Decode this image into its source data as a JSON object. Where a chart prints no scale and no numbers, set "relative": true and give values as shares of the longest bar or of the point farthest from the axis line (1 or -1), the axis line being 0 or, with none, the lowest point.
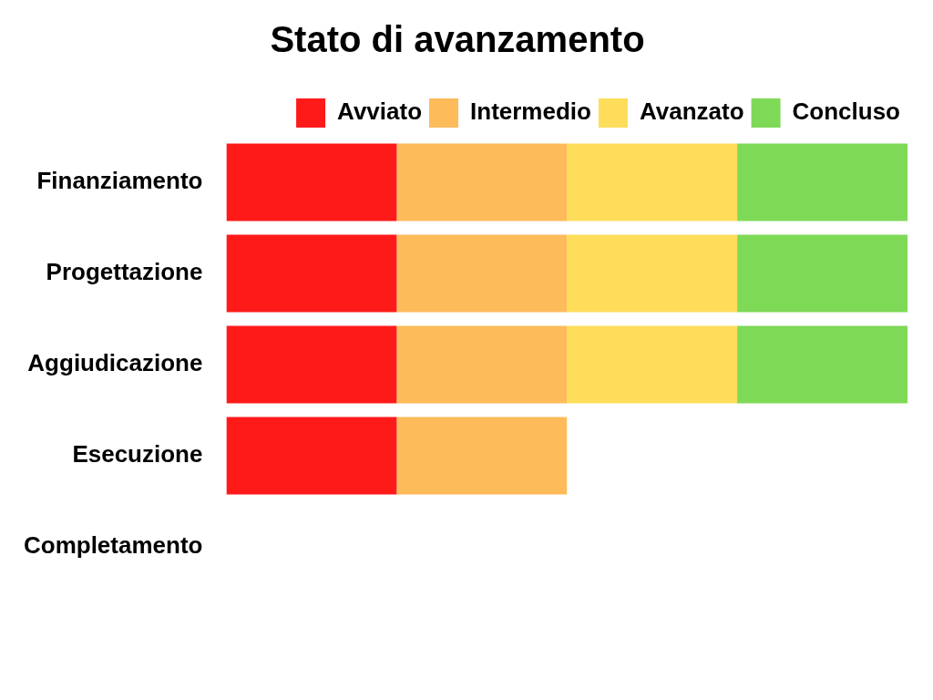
{
  "chart_data": {
    "type": "bar",
    "title": "Stato di avanzamento",
    "orientation": "horizontal",
    "stacked": true,
    "relative": true,
    "legend": "top right",
    "categories": [
      "Finanziamento",
      "Progettazione",
      "Aggiudicazione",
      "Esecuzione",
      "Completamento"
    ],
    "series": [
      {
        "name": "Avviato",
        "color": "#ff1a1a",
        "values": [
          0.25,
          0.25,
          0.25,
          0.25,
          null
        ]
      },
      {
        "name": "Intermedio",
        "color": "#fdbb5a",
        "values": [
          0.25,
          0.25,
          0.25,
          0.25,
          null
        ]
      },
      {
        "name": "Avanzato",
        "color": "#fedd5a",
        "values": [
          0.25,
          0.25,
          0.25,
          null,
          null
        ]
      },
      {
        "name": "Concluso",
        "color": "#7ed957",
        "values": [
          0.25,
          0.25,
          0.25,
          null,
          null
        ]
      }
    ]
  }
}
